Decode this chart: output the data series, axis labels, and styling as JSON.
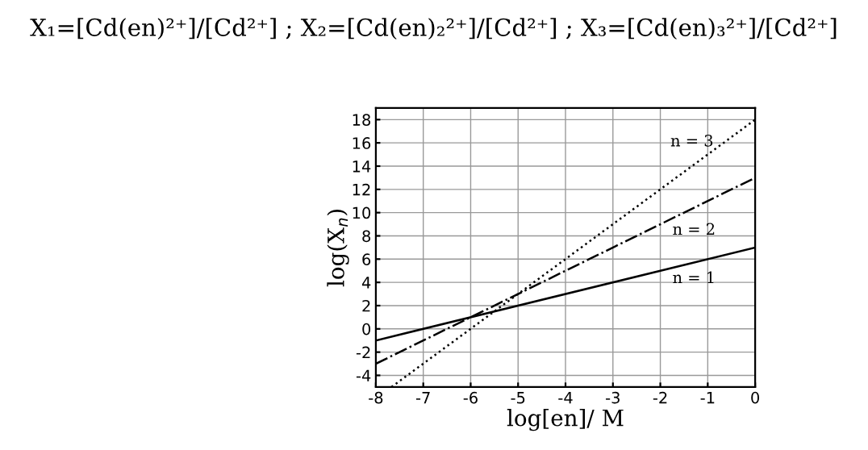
{
  "chart_data": {
    "type": "line",
    "title": "X₁=[Cd(en)²⁺]/[Cd²⁺] ; X₂=[Cd(en)₂²⁺]/[Cd²⁺] ; X₃=[Cd(en)₃²⁺]/[Cd²⁺]",
    "xlabel": "log[en]/ M",
    "ylabel": "log(X$_{n}$)",
    "series": [
      {
        "name": "n = 1",
        "color": "#000000",
        "line_style": "solid",
        "x": [
          -8,
          0
        ],
        "values": [
          -1,
          7
        ]
      },
      {
        "name": "n = 2",
        "color": "#000000",
        "line_style": "dashed",
        "x": [
          -8,
          0
        ],
        "values": [
          -3,
          13
        ]
      },
      {
        "name": "n = 3",
        "color": "#000000",
        "line_style": "dotted",
        "x": [
          -7.67,
          0
        ],
        "values": [
          -5,
          18
        ]
      }
    ],
    "xlim": [
      -8,
      0
    ],
    "xticks": [
      -8,
      -7,
      -6,
      -5,
      -4,
      -3,
      -2,
      -1,
      0
    ],
    "ylim": [
      -5,
      19
    ],
    "yticks": [
      -4,
      -2,
      0,
      2,
      4,
      6,
      8,
      10,
      12,
      14,
      16,
      18
    ],
    "grid": true,
    "marker": "none"
  }
}
